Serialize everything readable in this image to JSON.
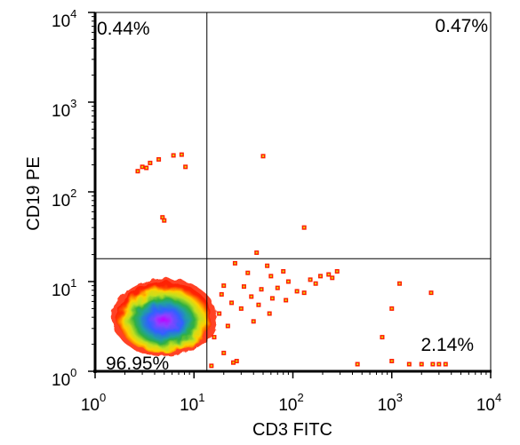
{
  "chart_data": {
    "type": "scatter",
    "style": "flow-cytometry-density",
    "xlabel": "CD3 FITC",
    "ylabel": "CD19 PE",
    "xscale": "log",
    "yscale": "log",
    "xlim": [
      1,
      10000
    ],
    "ylim": [
      1,
      10000
    ],
    "x_ticks": [
      {
        "base": "10",
        "exp": "0",
        "value": 1
      },
      {
        "base": "10",
        "exp": "1",
        "value": 10
      },
      {
        "base": "10",
        "exp": "2",
        "value": 100
      },
      {
        "base": "10",
        "exp": "3",
        "value": 1000
      },
      {
        "base": "10",
        "exp": "4",
        "value": 10000
      }
    ],
    "y_ticks": [
      {
        "base": "10",
        "exp": "0",
        "value": 1
      },
      {
        "base": "10",
        "exp": "1",
        "value": 10
      },
      {
        "base": "10",
        "exp": "2",
        "value": 100
      },
      {
        "base": "10",
        "exp": "3",
        "value": 1000
      },
      {
        "base": "10",
        "exp": "4",
        "value": 10000
      }
    ],
    "gates": {
      "x": 13.5,
      "y": 18
    },
    "quadrants": [
      {
        "name": "upper-left",
        "label": "0.44%"
      },
      {
        "name": "upper-right",
        "label": "0.47%"
      },
      {
        "name": "lower-left",
        "label": "96.95%"
      },
      {
        "name": "lower-right",
        "label": "2.14%"
      }
    ],
    "main_population": {
      "center": [
        5,
        4
      ],
      "spread_x": 3.2,
      "spread_y": 2.6
    },
    "grid": false,
    "legend": "none",
    "colors": {
      "high": "#c000ff",
      "mid_high": "#3060ff",
      "mid": "#20a060",
      "mid_low": "#e0e000",
      "low": "#ff2000"
    },
    "events": [
      [
        2.7,
        170
      ],
      [
        3.0,
        190
      ],
      [
        3.6,
        210
      ],
      [
        4.4,
        230
      ],
      [
        6.2,
        255
      ],
      [
        7.5,
        260
      ],
      [
        8.2,
        190
      ],
      [
        3.3,
        185
      ],
      [
        4.8,
        52
      ],
      [
        5.0,
        48
      ],
      [
        50,
        250
      ],
      [
        130,
        40
      ],
      [
        43,
        21
      ],
      [
        26,
        16
      ],
      [
        55,
        15
      ],
      [
        80,
        13
      ],
      [
        280,
        13
      ],
      [
        35,
        12.5
      ],
      [
        60,
        11.5
      ],
      [
        150,
        10.5
      ],
      [
        190,
        11.5
      ],
      [
        230,
        12
      ],
      [
        90,
        10
      ],
      [
        170,
        9.5
      ],
      [
        250,
        11
      ],
      [
        20,
        9
      ],
      [
        32,
        8.8
      ],
      [
        48,
        8.2
      ],
      [
        70,
        8.5
      ],
      [
        110,
        7.8
      ],
      [
        19,
        7.2
      ],
      [
        38,
        6.8
      ],
      [
        62,
        6.5
      ],
      [
        85,
        6.2
      ],
      [
        130,
        7.5
      ],
      [
        24,
        5.8
      ],
      [
        45,
        5.5
      ],
      [
        30,
        5.0
      ],
      [
        58,
        4.4
      ],
      [
        18,
        4.4
      ],
      [
        40,
        3.6
      ],
      [
        22,
        3.2
      ],
      [
        16,
        2.4
      ],
      [
        1200,
        9.5
      ],
      [
        2500,
        7.5
      ],
      [
        1000,
        5.0
      ],
      [
        800,
        2.4
      ],
      [
        1000,
        1.3
      ],
      [
        1500,
        1.2
      ],
      [
        2000,
        1.2
      ],
      [
        2600,
        1.2
      ],
      [
        3000,
        1.2
      ],
      [
        3500,
        1.2
      ],
      [
        450,
        1.2
      ],
      [
        25,
        1.25
      ],
      [
        15,
        1.15
      ],
      [
        20,
        1.6
      ],
      [
        27,
        1.3
      ]
    ]
  }
}
